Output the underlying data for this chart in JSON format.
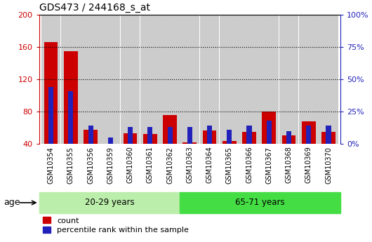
{
  "title": "GDS473 / 244168_s_at",
  "samples": [
    "GSM10354",
    "GSM10355",
    "GSM10356",
    "GSM10359",
    "GSM10360",
    "GSM10361",
    "GSM10362",
    "GSM10363",
    "GSM10364",
    "GSM10365",
    "GSM10366",
    "GSM10367",
    "GSM10368",
    "GSM10369",
    "GSM10370"
  ],
  "count_values": [
    166,
    155,
    58,
    40,
    53,
    52,
    76,
    42,
    57,
    44,
    55,
    80,
    51,
    68,
    55
  ],
  "percentile_values": [
    44,
    41,
    14,
    5,
    13,
    13,
    13,
    13,
    14,
    11,
    14,
    18,
    10,
    14,
    14
  ],
  "red_color": "#cc0000",
  "blue_color": "#2222bb",
  "group1_label": "20-29 years",
  "group2_label": "65-71 years",
  "group1_count": 7,
  "group2_count": 8,
  "ylim_left": [
    40,
    200
  ],
  "ylim_right": [
    0,
    100
  ],
  "yticks_left": [
    40,
    80,
    120,
    160,
    200
  ],
  "yticks_right": [
    0,
    25,
    50,
    75,
    100
  ],
  "age_label": "age",
  "legend_count": "count",
  "legend_pct": "percentile rank within the sample",
  "bar_bg_color": "#cccccc",
  "bar_width": 0.7,
  "blue_bar_width": 0.25,
  "axis_color_left": "#cc0000",
  "axis_color_right": "#2222bb",
  "group1_color": "#bbeeaa",
  "group2_color": "#44dd44"
}
